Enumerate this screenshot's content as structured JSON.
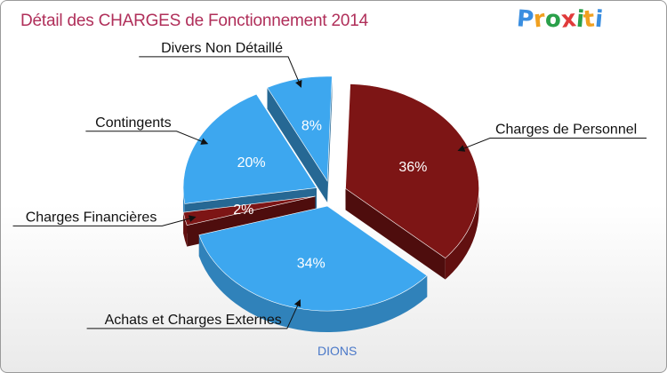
{
  "header": {
    "title": "Détail des CHARGES de Fonctionnement 2014",
    "logo_letters": [
      "P",
      "r",
      "o",
      "x",
      "i",
      "t",
      "i"
    ],
    "logo_colors": [
      "#3a8ee0",
      "#f0a020",
      "#2aa04a",
      "#e03a3a",
      "#2aa04a",
      "#f0a020",
      "#3a8ee0"
    ]
  },
  "footer": {
    "commune": "DIONS"
  },
  "chart_data": {
    "type": "pie",
    "title": "Détail des CHARGES de Fonctionnement 2014",
    "subtitle": "DIONS",
    "slices": [
      {
        "label": "Charges de Personnel",
        "value": 36,
        "pct_label": "36%",
        "color": "#7d1515"
      },
      {
        "label": "Achats et Charges Externes",
        "value": 34,
        "pct_label": "34%",
        "color": "#3da7ef"
      },
      {
        "label": "Charges Financières",
        "value": 2,
        "pct_label": "2%",
        "color": "#7d1515"
      },
      {
        "label": "Contingents",
        "value": 20,
        "pct_label": "20%",
        "color": "#3da7ef"
      },
      {
        "label": "Divers Non Détaillé",
        "value": 8,
        "pct_label": "8%",
        "color": "#3da7ef"
      }
    ]
  }
}
